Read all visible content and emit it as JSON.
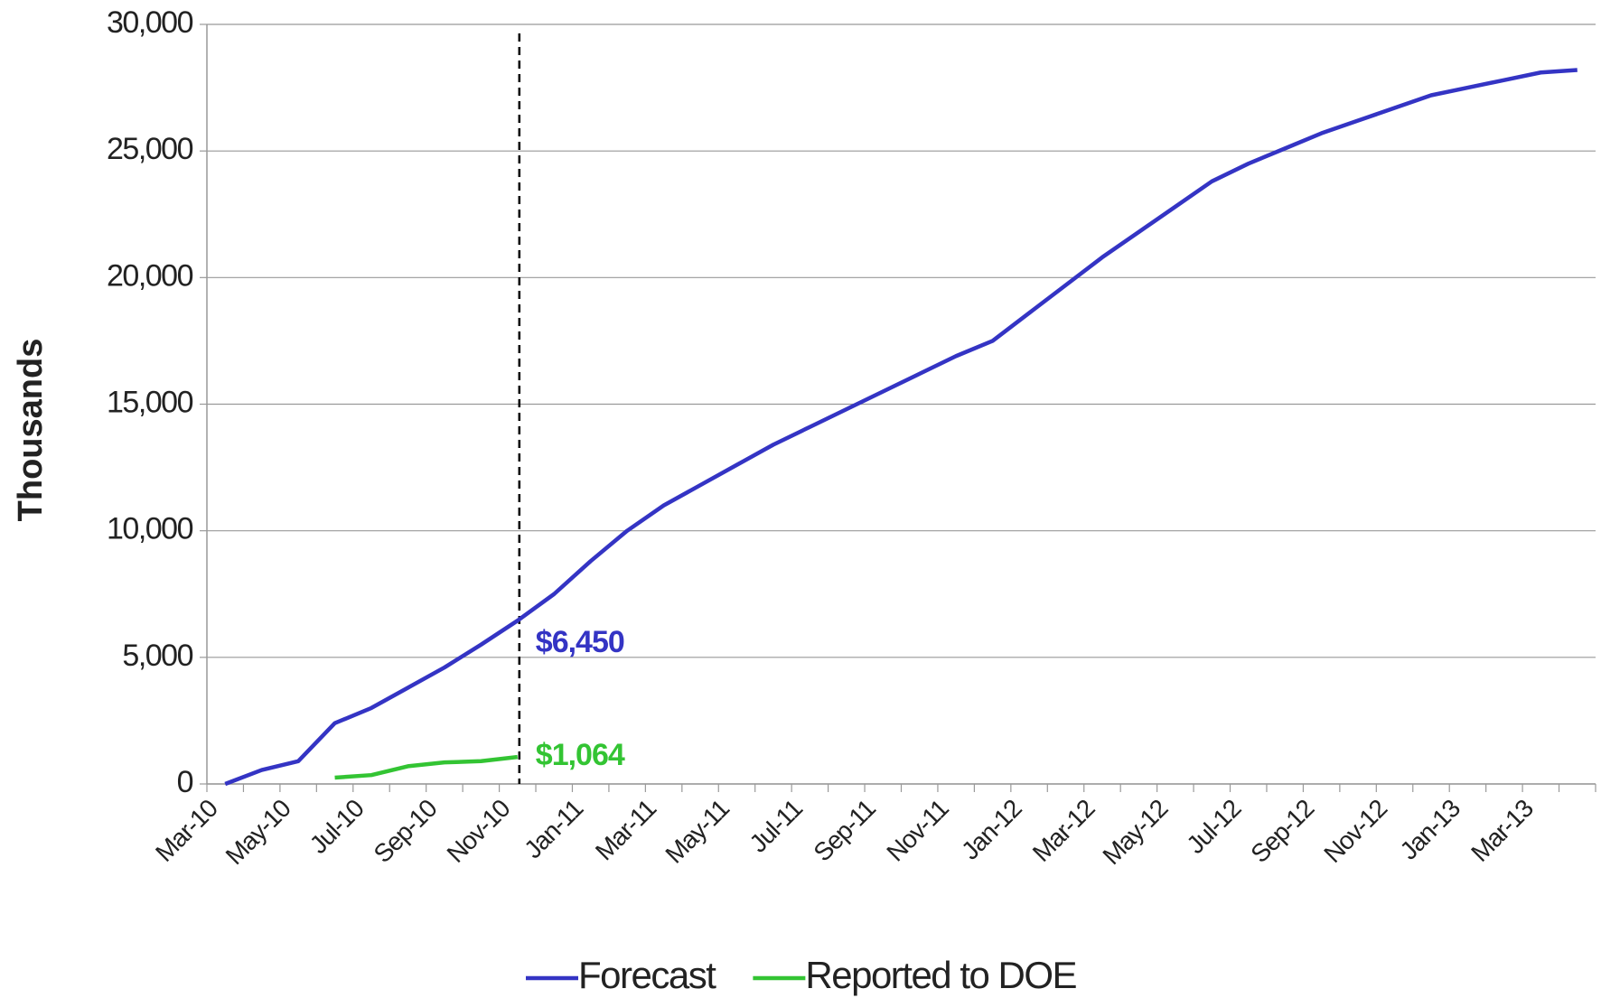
{
  "chart_data": {
    "type": "line",
    "y_label": "Thousands",
    "categories": [
      "Mar-10",
      null,
      "May-10",
      null,
      "Jul-10",
      null,
      "Sep-10",
      null,
      "Nov-10",
      null,
      "Jan-11",
      null,
      "Mar-11",
      null,
      "May-11",
      null,
      "Jul-11",
      null,
      "Sep-11",
      null,
      "Nov-11",
      null,
      "Jan-12",
      null,
      "Mar-12",
      null,
      "May-12",
      null,
      "Jul-12",
      null,
      "Sep-12",
      null,
      "Nov-12",
      null,
      "Jan-13",
      null,
      "Mar-13",
      null
    ],
    "series": [
      {
        "name": "Forecast",
        "color": "#3434c4",
        "values": [
          0,
          550,
          900,
          2400,
          3000,
          3800,
          4600,
          5500,
          6450,
          7500,
          8800,
          10000,
          11000,
          11800,
          12600,
          13400,
          14100,
          14800,
          15500,
          16200,
          16900,
          17500,
          18600,
          19700,
          20800,
          21800,
          22800,
          23800,
          24500,
          25100,
          25700,
          26200,
          26700,
          27200,
          27500,
          27800,
          28100,
          28200
        ],
        "value_labels": [
          null,
          null,
          null,
          null,
          null,
          null,
          null,
          null,
          "$6,450",
          null,
          null,
          null,
          null,
          null,
          null,
          null,
          null,
          null,
          null,
          null,
          null,
          null,
          null,
          null,
          null,
          null,
          null,
          null,
          null,
          null,
          null,
          null,
          null,
          null,
          null,
          null,
          null,
          null
        ]
      },
      {
        "name": "Reported to DOE",
        "color": "#33c433",
        "values": [
          null,
          null,
          null,
          250,
          350,
          700,
          850,
          900,
          1064,
          null,
          null,
          null,
          null,
          null,
          null,
          null,
          null,
          null,
          null,
          null,
          null,
          null,
          null,
          null,
          null,
          null,
          null,
          null,
          null,
          null,
          null,
          null,
          null,
          null,
          null,
          null,
          null,
          null
        ],
        "value_labels": [
          null,
          null,
          null,
          null,
          null,
          null,
          null,
          null,
          "$1,064",
          null,
          null,
          null,
          null,
          null,
          null,
          null,
          null,
          null,
          null,
          null,
          null,
          null,
          null,
          null,
          null,
          null,
          null,
          null,
          null,
          null,
          null,
          null,
          null,
          null,
          null,
          null,
          null,
          null
        ]
      }
    ],
    "ylim": [
      0,
      30000
    ],
    "yticks": [
      0,
      {
        "value": 5000,
        "label": "5,000"
      },
      {
        "value": 10000,
        "label": "10,000"
      },
      {
        "value": 15000,
        "label": "15,000"
      },
      {
        "value": 20000,
        "label": "20,000"
      },
      {
        "value": 25000,
        "label": "25,000"
      },
      {
        "value": 30000,
        "label": "30,000"
      }
    ],
    "grid": true,
    "legend": "bottom"
  }
}
